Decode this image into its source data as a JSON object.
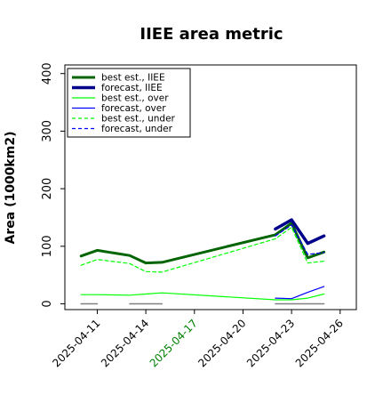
{
  "chart_data": {
    "type": "line",
    "title": "IIEE area metric",
    "ylabel": "Area (1000km2)",
    "xlabel": "",
    "ylim": [
      -10,
      415
    ],
    "xlim": [
      "2025-04-09",
      "2025-04-27"
    ],
    "grid": false,
    "legend_position": "top-left",
    "yticks": [
      0,
      100,
      200,
      300,
      400
    ],
    "xticks": [
      "2025-04-11",
      "2025-04-14",
      "2025-04-17",
      "2025-04-20",
      "2025-04-23",
      "2025-04-26"
    ],
    "xtick_colors": [
      "#000000",
      "#000000",
      "#008000",
      "#000000",
      "#000000",
      "#000000"
    ],
    "series": [
      {
        "name": "best est., IIEE",
        "color": "#006400",
        "width": 3,
        "dash": "none",
        "segments": [
          [
            [
              "2025-04-10",
              83
            ],
            [
              "2025-04-11",
              93
            ],
            [
              "2025-04-13",
              84
            ],
            [
              "2025-04-14",
              71
            ],
            [
              "2025-04-15",
              72
            ],
            [
              "2025-04-22",
              120
            ],
            [
              "2025-04-23",
              140
            ],
            [
              "2025-04-24",
              80
            ],
            [
              "2025-04-25",
              90
            ]
          ]
        ]
      },
      {
        "name": "forecast, IIEE",
        "color": "#00008b",
        "width": 3.5,
        "dash": "none",
        "segments": [
          [
            [
              "2025-04-22",
              130
            ],
            [
              "2025-04-23",
              146
            ],
            [
              "2025-04-24",
              105
            ],
            [
              "2025-04-25",
              118
            ]
          ]
        ]
      },
      {
        "name": "best est., over",
        "color": "#00ff00",
        "width": 1.2,
        "dash": "none",
        "segments": [
          [
            [
              "2025-04-10",
              16
            ],
            [
              "2025-04-11",
              16
            ],
            [
              "2025-04-13",
              15
            ],
            [
              "2025-04-14",
              17
            ],
            [
              "2025-04-15",
              19
            ],
            [
              "2025-04-22",
              7
            ],
            [
              "2025-04-23",
              7
            ],
            [
              "2025-04-24",
              10
            ],
            [
              "2025-04-25",
              17
            ]
          ]
        ]
      },
      {
        "name": "forecast, over",
        "color": "#0000ff",
        "width": 1.2,
        "dash": "none",
        "segments": [
          [
            [
              "2025-04-22",
              10
            ],
            [
              "2025-04-23",
              9
            ],
            [
              "2025-04-24",
              20
            ],
            [
              "2025-04-25",
              30
            ]
          ]
        ]
      },
      {
        "name": "best est., under",
        "color": "#00ff00",
        "width": 1.2,
        "dash": "4,3",
        "segments": [
          [
            [
              "2025-04-10",
              67
            ],
            [
              "2025-04-11",
              77
            ],
            [
              "2025-04-13",
              70
            ],
            [
              "2025-04-14",
              56
            ],
            [
              "2025-04-15",
              55
            ],
            [
              "2025-04-22",
              113
            ],
            [
              "2025-04-23",
              133
            ],
            [
              "2025-04-24",
              71
            ],
            [
              "2025-04-25",
              74
            ]
          ]
        ]
      },
      {
        "name": "forecast, under",
        "color": "#0000ff",
        "width": 1.2,
        "dash": "4,3",
        "segments": [
          [
            [
              "2025-04-22",
              118
            ],
            [
              "2025-04-23",
              137
            ],
            [
              "2025-04-24",
              86
            ],
            [
              "2025-04-25",
              89
            ]
          ]
        ]
      },
      {
        "name": "",
        "color": "#808080",
        "width": 1.5,
        "dash": "none",
        "in_legend": false,
        "segments": [
          [
            [
              "2025-04-10",
              0
            ],
            [
              "2025-04-11",
              0
            ]
          ],
          [
            [
              "2025-04-13",
              0
            ],
            [
              "2025-04-15",
              0
            ]
          ],
          [
            [
              "2025-04-22",
              0
            ],
            [
              "2025-04-25",
              0
            ]
          ]
        ]
      }
    ]
  }
}
